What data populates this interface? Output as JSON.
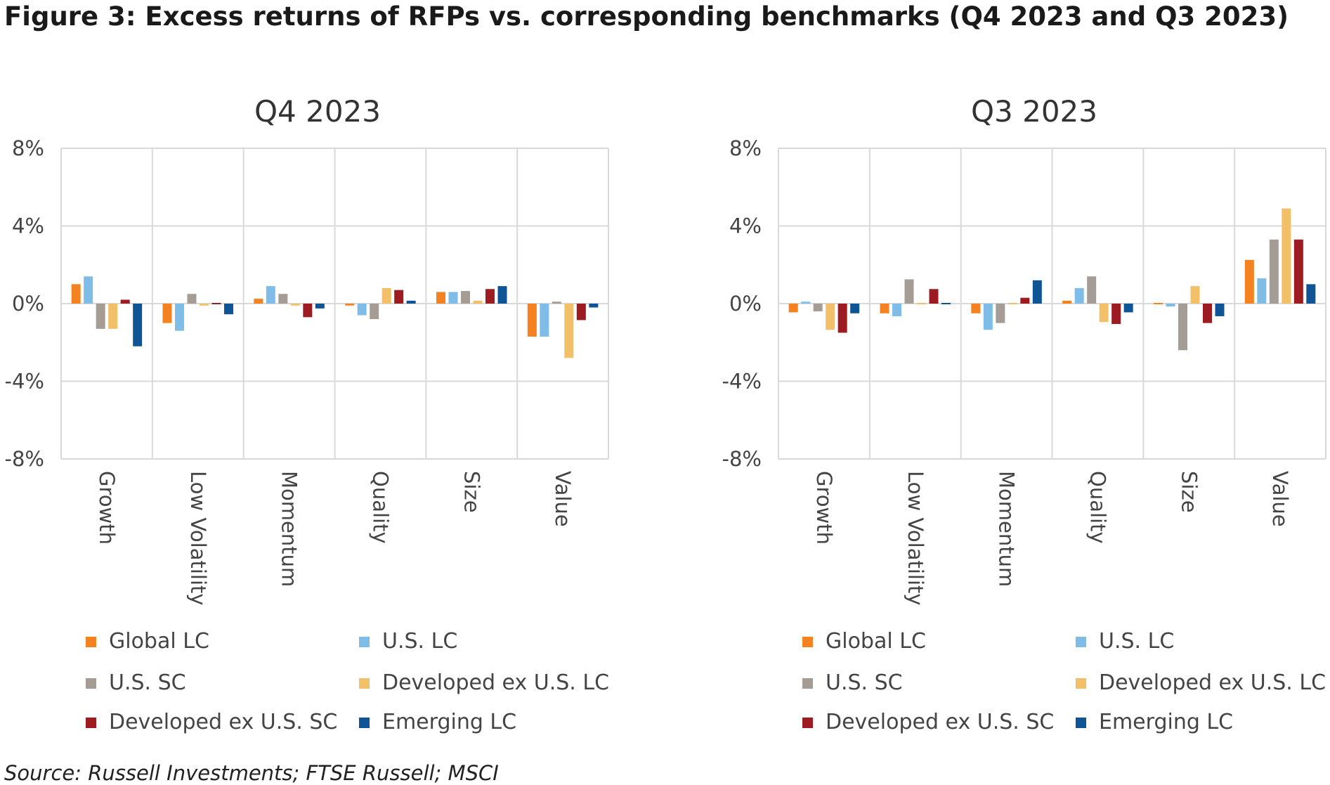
{
  "figure_title": "Figure 3: Excess returns of RFPs vs. corresponding benchmarks (Q4 2023 and Q3 2023)",
  "source": "Source: Russell Investments; FTSE Russell; MSCI",
  "colors": {
    "Global LC": "#f58220",
    "U.S. LC": "#7fbce8",
    "U.S. SC": "#a59d95",
    "Developed ex U.S. LC": "#f2c068",
    "Developed ex U.S. SC": "#9c1c22",
    "Emerging LC": "#0f5596"
  },
  "chart_data": [
    {
      "type": "bar",
      "title": "Q4 2023",
      "categories": [
        "Growth",
        "Low Volatility",
        "Momentum",
        "Quality",
        "Size",
        "Value"
      ],
      "ylim": [
        -8,
        8
      ],
      "yticks": [
        "8%",
        "4%",
        "0%",
        "-4%",
        "-8%"
      ],
      "ytick_values": [
        8,
        4,
        0,
        -4,
        -8
      ],
      "grid": true,
      "legend_position": "bottom",
      "series": [
        {
          "name": "Global LC",
          "values": [
            1.0,
            -1.0,
            0.25,
            -0.1,
            0.6,
            -1.7
          ]
        },
        {
          "name": "U.S. LC",
          "values": [
            1.4,
            -1.4,
            0.9,
            -0.6,
            0.6,
            -1.7
          ]
        },
        {
          "name": "U.S. SC",
          "values": [
            -1.3,
            0.5,
            0.5,
            -0.8,
            0.65,
            0.1
          ]
        },
        {
          "name": "Developed ex U.S. LC",
          "values": [
            -1.3,
            -0.1,
            -0.1,
            0.8,
            0.15,
            -2.8
          ]
        },
        {
          "name": "Developed ex U.S. SC",
          "values": [
            0.2,
            0.0,
            -0.7,
            0.7,
            0.75,
            -0.85
          ]
        },
        {
          "name": "Emerging LC",
          "values": [
            -2.2,
            -0.55,
            -0.25,
            0.15,
            0.9,
            -0.2
          ]
        }
      ]
    },
    {
      "type": "bar",
      "title": "Q3 2023",
      "categories": [
        "Growth",
        "Low Volatility",
        "Momentum",
        "Quality",
        "Size",
        "Value"
      ],
      "ylim": [
        -8,
        8
      ],
      "yticks": [
        "8%",
        "4%",
        "0%",
        "-4%",
        "-8%"
      ],
      "ytick_values": [
        8,
        4,
        0,
        -4,
        -8
      ],
      "grid": true,
      "legend_position": "bottom",
      "series": [
        {
          "name": "Global LC",
          "values": [
            -0.45,
            -0.5,
            -0.5,
            0.15,
            0.0,
            2.25
          ]
        },
        {
          "name": "U.S. LC",
          "values": [
            0.1,
            -0.65,
            -1.35,
            0.8,
            -0.15,
            1.3
          ]
        },
        {
          "name": "U.S. SC",
          "values": [
            -0.4,
            1.25,
            -1.0,
            1.4,
            -2.4,
            3.3
          ]
        },
        {
          "name": "Developed ex U.S. LC",
          "values": [
            -1.35,
            0.05,
            0.05,
            -0.95,
            0.9,
            4.9
          ]
        },
        {
          "name": "Developed ex U.S. SC",
          "values": [
            -1.5,
            0.75,
            0.3,
            -1.05,
            -1.0,
            3.3
          ]
        },
        {
          "name": "Emerging LC",
          "values": [
            -0.5,
            0.05,
            1.2,
            -0.45,
            -0.65,
            1.0
          ]
        }
      ]
    }
  ]
}
